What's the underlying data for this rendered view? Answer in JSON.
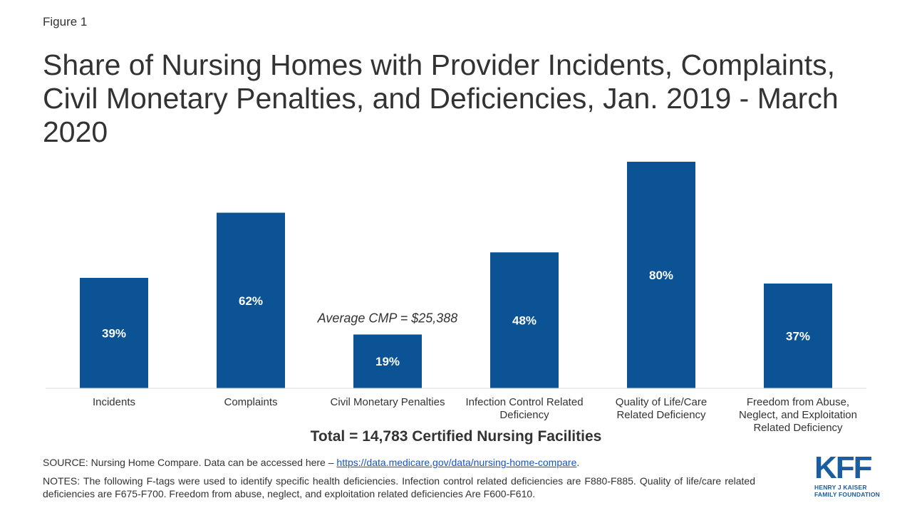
{
  "figure_label": "Figure 1",
  "title": "Share of Nursing Homes with Provider Incidents, Complaints, Civil Monetary Penalties, and Deficiencies, Jan. 2019 - March 2020",
  "chart_data": {
    "type": "bar",
    "title": "Share of Nursing Homes with Provider Incidents, Complaints, Civil Monetary Penalties, and Deficiencies, Jan. 2019 - March 2020",
    "categories": [
      [
        "Incidents"
      ],
      [
        "Complaints"
      ],
      [
        "Civil Monetary Penalties"
      ],
      [
        "Infection Control Related",
        "Deficiency"
      ],
      [
        "Quality of Life/Care",
        "Related Deficiency"
      ],
      [
        "Freedom from Abuse,",
        "Neglect, and Exploitation",
        "Related Deficiency"
      ]
    ],
    "values": [
      39,
      62,
      19,
      48,
      80,
      37
    ],
    "value_labels": [
      "39%",
      "62%",
      "19%",
      "48%",
      "80%",
      "37%"
    ],
    "ylim": [
      0,
      80
    ],
    "annotation": {
      "category_index": 2,
      "text": "Average CMP = $25,388"
    },
    "xlabel": "Total = 14,783 Certified Nursing Facilities",
    "ylabel": "",
    "bar_color": "#0b5394"
  },
  "source": {
    "prefix": "SOURCE: Nursing Home Compare. Data can be accessed here – ",
    "link_text": "https://data.medicare.gov/data/nursing-home-compare",
    "suffix": "."
  },
  "notes": "NOTES: The following F-tags were used to identify specific health deficiencies. Infection control related deficiencies are F880-F885. Quality of life/care related deficiencies are F675-F700. Freedom from abuse, neglect, and exploitation related deficiencies Are F600-F610.",
  "logo": {
    "mark": "KFF",
    "line1": "HENRY J KAISER",
    "line2": "FAMILY FOUNDATION"
  }
}
